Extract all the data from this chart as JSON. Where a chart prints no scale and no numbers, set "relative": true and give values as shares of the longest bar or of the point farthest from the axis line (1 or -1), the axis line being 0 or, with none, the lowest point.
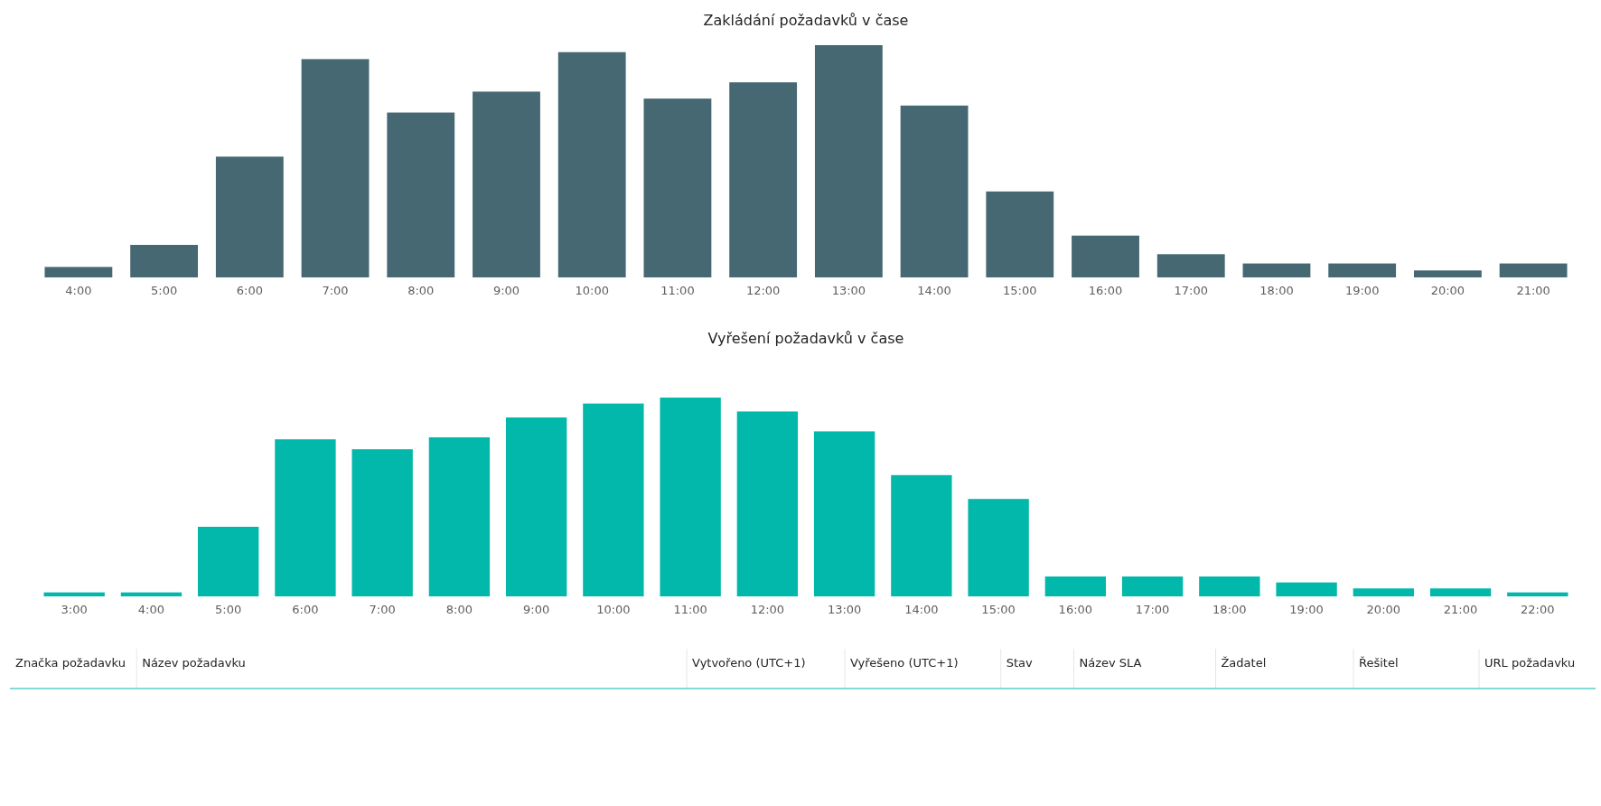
{
  "chart_data": [
    {
      "type": "bar",
      "title": "Zakládání požadavků v čase",
      "relative": true,
      "color": "#466872",
      "categories": [
        "4:00",
        "5:00",
        "6:00",
        "7:00",
        "8:00",
        "9:00",
        "10:00",
        "11:00",
        "12:00",
        "13:00",
        "14:00",
        "15:00",
        "16:00",
        "17:00",
        "18:00",
        "19:00",
        "20:00",
        "21:00"
      ],
      "values": [
        0.045,
        0.14,
        0.52,
        0.94,
        0.71,
        0.8,
        0.97,
        0.77,
        0.84,
        1,
        0.74,
        0.37,
        0.18,
        0.1,
        0.06,
        0.06,
        0.03,
        0.06
      ]
    },
    {
      "type": "bar",
      "title": "Vyřešení požadavků v čase",
      "relative": true,
      "color": "#01b8aa",
      "categories": [
        "3:00",
        "4:00",
        "5:00",
        "6:00",
        "7:00",
        "8:00",
        "9:00",
        "10:00",
        "11:00",
        "12:00",
        "13:00",
        "14:00",
        "15:00",
        "16:00",
        "17:00",
        "18:00",
        "19:00",
        "20:00",
        "21:00",
        "22:00"
      ],
      "values": [
        0.02,
        0.02,
        0.35,
        0.79,
        0.74,
        0.8,
        0.9,
        0.97,
        1,
        0.93,
        0.83,
        0.61,
        0.49,
        0.1,
        0.1,
        0.1,
        0.07,
        0.04,
        0.04,
        0.02
      ]
    },
    {
      "type": "other",
      "annotations": [
        "Značka požadavku",
        "Název požadavku",
        "Vytvořeno (UTC+1)",
        "Vyřešeno (UTC+1)",
        "Stav",
        "Název SLA",
        "Žadatel",
        "Řešitel",
        "URL požadavku"
      ]
    }
  ]
}
